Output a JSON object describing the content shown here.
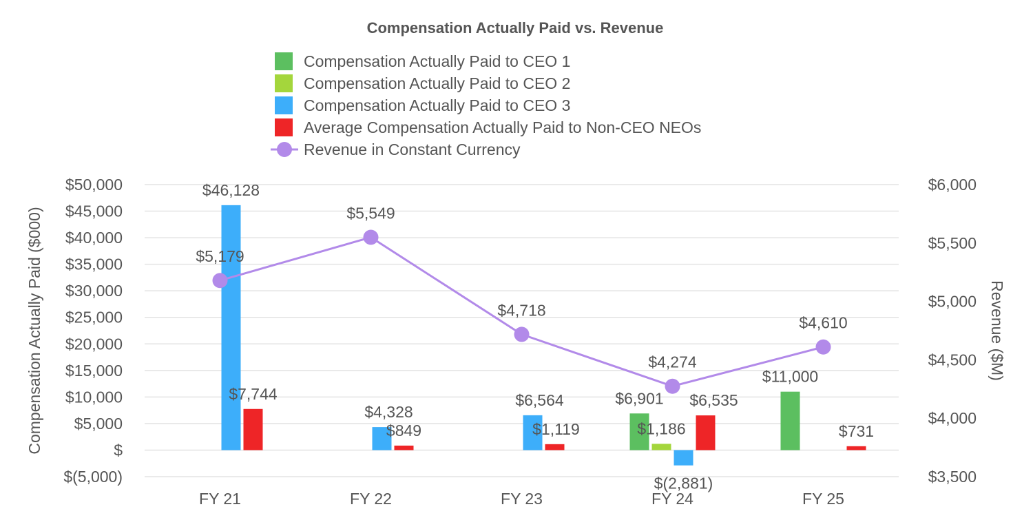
{
  "chart_data": {
    "type": "bar",
    "title": "Compensation Actually Paid vs. Revenue",
    "categories": [
      "FY 21",
      "FY 22",
      "FY 23",
      "FY 24",
      "FY 25"
    ],
    "ylabel": "Compensation Actually Paid ($000)",
    "y2label": "Revenue ($M)",
    "ylim": [
      -5000,
      50000
    ],
    "y2lim": [
      3500,
      6000
    ],
    "yticks": [
      {
        "value": 50000,
        "label": "$50,000"
      },
      {
        "value": 45000,
        "label": "$45,000"
      },
      {
        "value": 40000,
        "label": "$40,000"
      },
      {
        "value": 35000,
        "label": "$35,000"
      },
      {
        "value": 30000,
        "label": "$30,000"
      },
      {
        "value": 25000,
        "label": "$25,000"
      },
      {
        "value": 20000,
        "label": "$20,000"
      },
      {
        "value": 15000,
        "label": "$15,000"
      },
      {
        "value": 10000,
        "label": "$10,000"
      },
      {
        "value": 5000,
        "label": "$5,000"
      },
      {
        "value": 0,
        "label": "$"
      },
      {
        "value": -5000,
        "label": "$(5,000)"
      }
    ],
    "y2ticks": [
      {
        "value": 6000,
        "label": "$6,000"
      },
      {
        "value": 5500,
        "label": "$5,500"
      },
      {
        "value": 5000,
        "label": "$5,000"
      },
      {
        "value": 4500,
        "label": "$4,500"
      },
      {
        "value": 4000,
        "label": "$4,000"
      },
      {
        "value": 3500,
        "label": "$3,500"
      }
    ],
    "grid": true,
    "legend_position": "top",
    "series": [
      {
        "name": "Compensation Actually Paid to CEO 1",
        "type": "bar",
        "color": "#5cbf60",
        "values": [
          null,
          null,
          null,
          6901,
          11000
        ],
        "labels": [
          null,
          null,
          null,
          "$6,901",
          "$11,000"
        ]
      },
      {
        "name": "Compensation Actually Paid to CEO 2",
        "type": "bar",
        "color": "#a4d63c",
        "values": [
          null,
          null,
          null,
          1186,
          null
        ],
        "labels": [
          null,
          null,
          null,
          "$1,186",
          null
        ]
      },
      {
        "name": "Compensation Actually Paid to CEO 3",
        "type": "bar",
        "color": "#3daefa",
        "values": [
          46128,
          4328,
          6564,
          -2881,
          null
        ],
        "labels": [
          "$46,128",
          "$4,328",
          "$6,564",
          "$(2,881)",
          null
        ]
      },
      {
        "name": "Average Compensation Actually Paid to Non-CEO NEOs",
        "type": "bar",
        "color": "#ee2527",
        "values": [
          7744,
          849,
          1119,
          6535,
          731
        ],
        "labels": [
          "$7,744",
          "$849",
          "$1,119",
          "$6,535",
          "$731"
        ]
      },
      {
        "name": "Revenue in Constant Currency",
        "type": "line",
        "axis": "right",
        "color": "#b28ae9",
        "values": [
          5179,
          5549,
          4718,
          4274,
          4610
        ],
        "labels": [
          "$5,179",
          "$5,549",
          "$4,718",
          "$4,274",
          "$4,610"
        ]
      }
    ]
  }
}
